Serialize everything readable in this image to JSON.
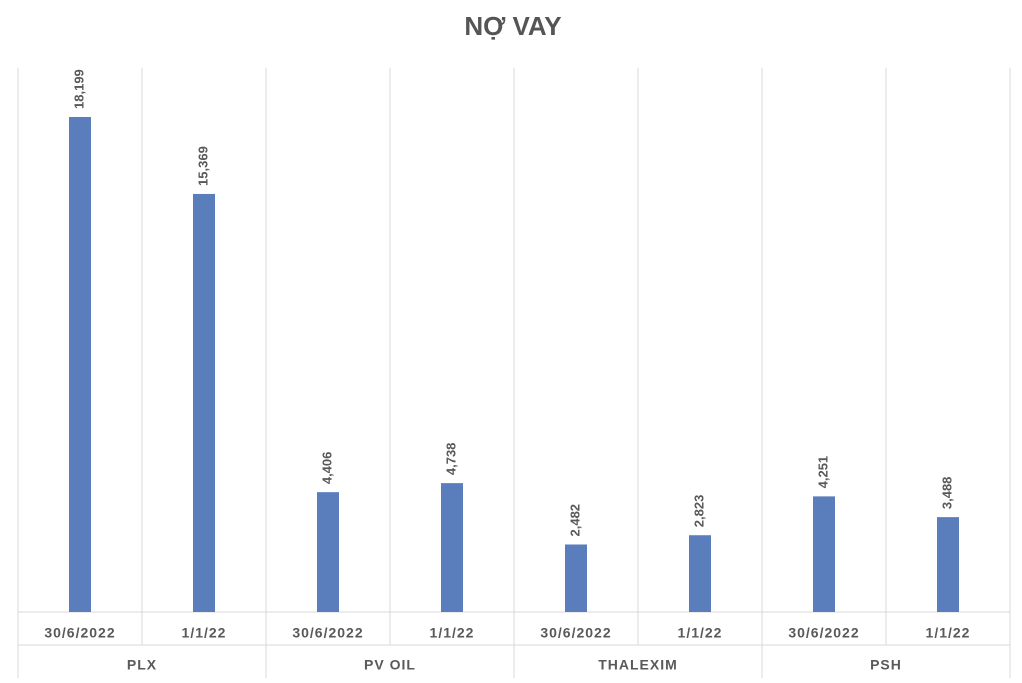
{
  "chart_data": {
    "type": "bar",
    "title": "NỢ VAY",
    "categories": [
      "30/6/2022",
      "1/1/22",
      "30/6/2022",
      "1/1/22",
      "30/6/2022",
      "1/1/22",
      "30/6/2022",
      "1/1/22"
    ],
    "groups": [
      "PLX",
      "PV OIL",
      "THALEXIM",
      "PSH"
    ],
    "values": [
      18199,
      15369,
      4406,
      4738,
      2482,
      2823,
      4251,
      3488
    ],
    "value_labels": [
      "18,199",
      "15,369",
      "4,406",
      "4,738",
      "2,482",
      "2,823",
      "4,251",
      "3,488"
    ],
    "color": "#5a7ebc",
    "ylim": [
      0,
      20000
    ],
    "grid": true
  }
}
